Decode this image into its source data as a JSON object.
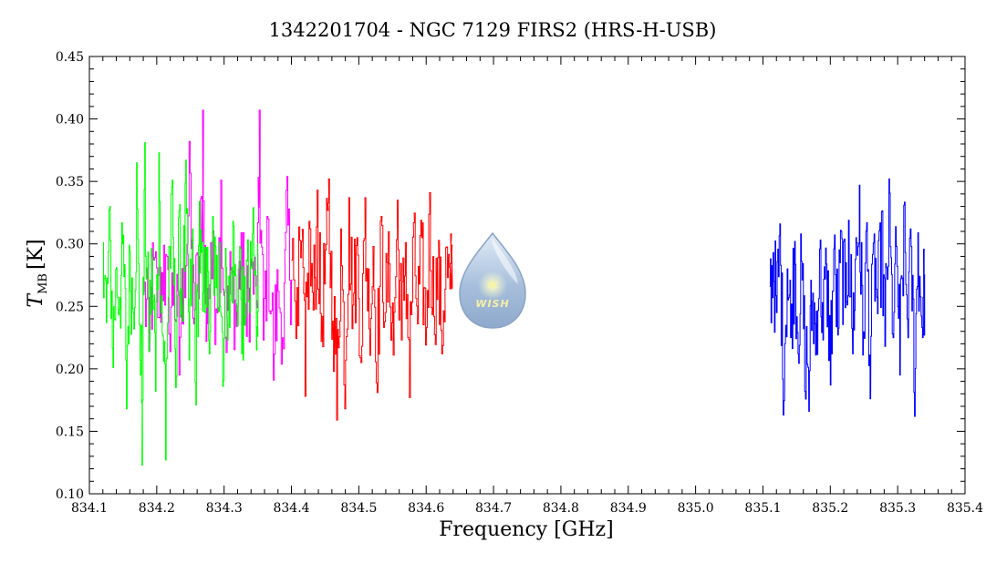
{
  "chart_data": {
    "type": "line",
    "title": "1342201704 - NGC 7129 FIRS2 (HRS-H-USB)",
    "xlabel": "Frequency [GHz]",
    "ylabel_main": "T",
    "ylabel_sub": "MB",
    "ylabel_unit": "[K]",
    "xlim": [
      834.1,
      835.4
    ],
    "ylim": [
      0.1,
      0.45
    ],
    "x_ticks": [
      "834.1",
      "834.2",
      "834.3",
      "834.4",
      "834.5",
      "834.6",
      "834.7",
      "834.8",
      "834.9",
      "835.0",
      "835.1",
      "835.2",
      "835.3",
      "835.4"
    ],
    "y_ticks": [
      "0.10",
      "0.15",
      "0.20",
      "0.25",
      "0.30",
      "0.35",
      "0.40",
      "0.45"
    ],
    "grid": false,
    "logo_text": "WISH",
    "series": [
      {
        "color": "#ff00ff",
        "x_range": [
          834.18,
          834.4
        ],
        "points": [
          [
            834.18,
            0.262
          ],
          [
            834.188,
            0.214
          ],
          [
            834.195,
            0.287
          ],
          [
            834.203,
            0.241
          ],
          [
            834.21,
            0.299
          ],
          [
            834.218,
            0.228
          ],
          [
            834.225,
            0.271
          ],
          [
            834.233,
            0.195
          ],
          [
            834.24,
            0.282
          ],
          [
            834.248,
            0.382
          ],
          [
            834.255,
            0.236
          ],
          [
            834.263,
            0.29
          ],
          [
            834.268,
            0.407
          ],
          [
            834.273,
            0.222
          ],
          [
            834.28,
            0.301
          ],
          [
            834.288,
            0.248
          ],
          [
            834.295,
            0.351
          ],
          [
            834.303,
            0.213
          ],
          [
            834.31,
            0.279
          ],
          [
            834.318,
            0.234
          ],
          [
            834.325,
            0.309
          ],
          [
            834.333,
            0.226
          ],
          [
            834.34,
            0.288
          ],
          [
            834.348,
            0.249
          ],
          [
            834.352,
            0.407
          ],
          [
            834.358,
            0.223
          ],
          [
            834.365,
            0.32
          ],
          [
            834.373,
            0.191
          ],
          [
            834.38,
            0.262
          ],
          [
            834.388,
            0.216
          ],
          [
            834.393,
            0.354
          ],
          [
            834.4,
            0.271
          ]
        ]
      },
      {
        "color": "#00ff00",
        "x_range": [
          834.12,
          834.35
        ],
        "points": [
          [
            834.12,
            0.301
          ],
          [
            834.125,
            0.237
          ],
          [
            834.13,
            0.33
          ],
          [
            834.135,
            0.201
          ],
          [
            834.14,
            0.281
          ],
          [
            834.145,
            0.257
          ],
          [
            834.15,
            0.307
          ],
          [
            834.155,
            0.168
          ],
          [
            834.16,
            0.294
          ],
          [
            834.165,
            0.245
          ],
          [
            834.17,
            0.365
          ],
          [
            834.175,
            0.207
          ],
          [
            834.178,
            0.123
          ],
          [
            834.182,
            0.381
          ],
          [
            834.188,
            0.214
          ],
          [
            834.193,
            0.289
          ],
          [
            834.198,
            0.182
          ],
          [
            834.203,
            0.373
          ],
          [
            834.208,
            0.228
          ],
          [
            834.213,
            0.127
          ],
          [
            834.218,
            0.298
          ],
          [
            834.223,
            0.351
          ],
          [
            834.228,
            0.185
          ],
          [
            834.233,
            0.327
          ],
          [
            834.238,
            0.244
          ],
          [
            834.243,
            0.367
          ],
          [
            834.248,
            0.207
          ],
          [
            834.253,
            0.312
          ],
          [
            834.258,
            0.171
          ],
          [
            834.263,
            0.334
          ],
          [
            834.268,
            0.246
          ],
          [
            834.273,
            0.297
          ],
          [
            834.278,
            0.212
          ],
          [
            834.283,
            0.322
          ],
          [
            834.288,
            0.265
          ],
          [
            834.293,
            0.301
          ],
          [
            834.298,
            0.186
          ],
          [
            834.303,
            0.281
          ],
          [
            834.308,
            0.233
          ],
          [
            834.313,
            0.318
          ],
          [
            834.318,
            0.252
          ],
          [
            834.323,
            0.298
          ],
          [
            834.328,
            0.207
          ],
          [
            834.333,
            0.287
          ],
          [
            834.338,
            0.245
          ],
          [
            834.343,
            0.329
          ],
          [
            834.348,
            0.215
          ],
          [
            834.35,
            0.3
          ]
        ]
      },
      {
        "color": "#ff0000",
        "x_range": [
          834.4,
          834.64
        ],
        "points": [
          [
            834.4,
            0.287
          ],
          [
            834.408,
            0.265
          ],
          [
            834.415,
            0.302
          ],
          [
            834.42,
            0.178
          ],
          [
            834.426,
            0.318
          ],
          [
            834.432,
            0.247
          ],
          [
            834.438,
            0.343
          ],
          [
            834.444,
            0.222
          ],
          [
            834.45,
            0.295
          ],
          [
            834.455,
            0.352
          ],
          [
            834.461,
            0.238
          ],
          [
            834.467,
            0.159
          ],
          [
            834.473,
            0.312
          ],
          [
            834.479,
            0.168
          ],
          [
            834.485,
            0.337
          ],
          [
            834.491,
            0.251
          ],
          [
            834.497,
            0.305
          ],
          [
            834.503,
            0.205
          ],
          [
            834.509,
            0.337
          ],
          [
            834.515,
            0.232
          ],
          [
            834.521,
            0.298
          ],
          [
            834.527,
            0.181
          ],
          [
            834.533,
            0.322
          ],
          [
            834.539,
            0.245
          ],
          [
            834.545,
            0.284
          ],
          [
            834.551,
            0.211
          ],
          [
            834.557,
            0.335
          ],
          [
            834.563,
            0.223
          ],
          [
            834.569,
            0.301
          ],
          [
            834.575,
            0.177
          ],
          [
            834.581,
            0.317
          ],
          [
            834.587,
            0.236
          ],
          [
            834.593,
            0.305
          ],
          [
            834.599,
            0.219
          ],
          [
            834.605,
            0.341
          ],
          [
            834.611,
            0.242
          ],
          [
            834.617,
            0.289
          ],
          [
            834.623,
            0.212
          ],
          [
            834.629,
            0.297
          ],
          [
            834.635,
            0.264
          ],
          [
            834.638,
            0.299
          ]
        ]
      },
      {
        "color": "#0000ff",
        "x_range": [
          835.11,
          835.34
        ],
        "points": [
          [
            835.11,
            0.266
          ],
          [
            835.115,
            0.293
          ],
          [
            835.12,
            0.245
          ],
          [
            835.125,
            0.316
          ],
          [
            835.13,
            0.163
          ],
          [
            835.136,
            0.28
          ],
          [
            835.141,
            0.225
          ],
          [
            835.147,
            0.302
          ],
          [
            835.152,
            0.212
          ],
          [
            835.157,
            0.286
          ],
          [
            835.162,
            0.182
          ],
          [
            835.168,
            0.166
          ],
          [
            835.173,
            0.254
          ],
          [
            835.178,
            0.211
          ],
          [
            835.184,
            0.296
          ],
          [
            835.189,
            0.223
          ],
          [
            835.194,
            0.284
          ],
          [
            835.2,
            0.187
          ],
          [
            835.205,
            0.296
          ],
          [
            835.211,
            0.227
          ],
          [
            835.216,
            0.31
          ],
          [
            835.222,
            0.249
          ],
          [
            835.227,
            0.319
          ],
          [
            835.233,
            0.212
          ],
          [
            835.238,
            0.305
          ],
          [
            835.243,
            0.347
          ],
          [
            835.248,
            0.211
          ],
          [
            835.254,
            0.317
          ],
          [
            835.259,
            0.176
          ],
          [
            835.265,
            0.308
          ],
          [
            835.27,
            0.244
          ],
          [
            835.276,
            0.326
          ],
          [
            835.281,
            0.218
          ],
          [
            835.287,
            0.352
          ],
          [
            835.292,
            0.228
          ],
          [
            835.298,
            0.298
          ],
          [
            835.303,
            0.195
          ],
          [
            835.309,
            0.331
          ],
          [
            835.314,
            0.24
          ],
          [
            835.32,
            0.298
          ],
          [
            835.325,
            0.162
          ],
          [
            835.33,
            0.309
          ],
          [
            835.336,
            0.233
          ],
          [
            835.34,
            0.275
          ]
        ]
      }
    ]
  }
}
